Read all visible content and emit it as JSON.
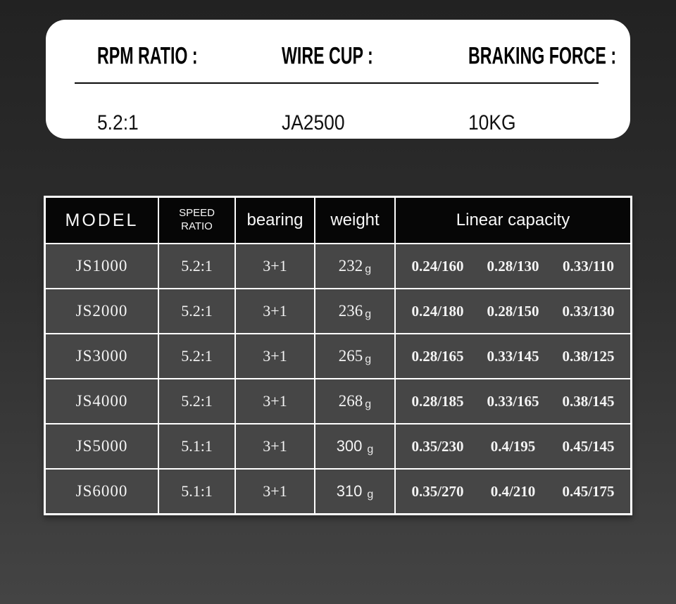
{
  "colors": {
    "background_top": "#222222",
    "background_bottom": "#444444",
    "card_background": "#ffffff",
    "table_header_background": "#060606",
    "table_row_background": "#464646",
    "table_border": "#ffffff",
    "text_on_dark": "#f4f4f4",
    "text_on_light": "#000000"
  },
  "spec_card": {
    "columns": [
      {
        "label": "RPM RATIO :",
        "value": "5.2:1"
      },
      {
        "label": "WIRE CUP :",
        "value": "JA2500"
      },
      {
        "label": "BRAKING FORCE :",
        "value": "10KG"
      }
    ]
  },
  "spec_table": {
    "headers": {
      "model": "MODEL",
      "speed_ratio": "SPEED RATIO",
      "bearing": "bearing",
      "weight": "weight",
      "linear_capacity": "Linear capacity"
    },
    "rows": [
      {
        "model": "JS1000",
        "speed_ratio": "5.2:1",
        "bearing": "3+1",
        "weight_value": "232",
        "weight_unit": "g",
        "capacity": [
          "0.24/160",
          "0.28/130",
          "0.33/110"
        ]
      },
      {
        "model": "JS2000",
        "speed_ratio": "5.2:1",
        "bearing": "3+1",
        "weight_value": "236",
        "weight_unit": "g",
        "capacity": [
          "0.24/180",
          "0.28/150",
          "0.33/130"
        ]
      },
      {
        "model": "JS3000",
        "speed_ratio": "5.2:1",
        "bearing": "3+1",
        "weight_value": "265",
        "weight_unit": "g",
        "capacity": [
          "0.28/165",
          "0.33/145",
          "0.38/125"
        ]
      },
      {
        "model": "JS4000",
        "speed_ratio": "5.2:1",
        "bearing": "3+1",
        "weight_value": "268",
        "weight_unit": "g",
        "capacity": [
          "0.28/185",
          "0.33/165",
          "0.38/145"
        ]
      },
      {
        "model": "JS5000",
        "speed_ratio": "5.1:1",
        "bearing": "3+1",
        "weight_value": "300",
        "weight_unit": "g",
        "capacity": [
          "0.35/230",
          "0.4/195",
          "0.45/145"
        ]
      },
      {
        "model": "JS6000",
        "speed_ratio": "5.1:1",
        "bearing": "3+1",
        "weight_value": "310",
        "weight_unit": "g",
        "capacity": [
          "0.35/270",
          "0.4/210",
          "0.45/175"
        ]
      }
    ]
  }
}
